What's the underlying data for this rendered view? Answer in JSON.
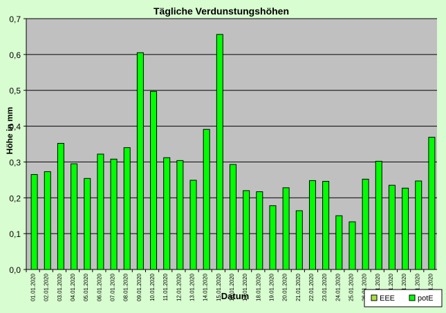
{
  "chart_data": {
    "type": "bar",
    "title": "Tägliche Verdunstungshöhen",
    "xlabel": "Datum",
    "ylabel": "Höhe in mm",
    "ylim": [
      0,
      0.7
    ],
    "yticks": [
      "0,0",
      "0,1",
      "0,2",
      "0,3",
      "0,4",
      "0,5",
      "0,6",
      "0,7"
    ],
    "grid": true,
    "legend_position": "bottom-right",
    "categories": [
      "01.01.2020",
      "02.01.2020",
      "03.01.2020",
      "04.01.2020",
      "05.01.2020",
      "06.01.2020",
      "07.01.2020",
      "08.01.2020",
      "09.01.2020",
      "10.01.2020",
      "11.01.2020",
      "12.01.2020",
      "13.01.2020",
      "14.01.2020",
      "15.01.2020",
      "16.01.2020",
      "17.01.2020",
      "18.01.2020",
      "19.01.2020",
      "20.01.2020",
      "21.01.2020",
      "22.01.2020",
      "23.01.2020",
      "24.01.2020",
      "25.01.2020",
      "26.01.2020",
      "27.01.2020",
      "28.01.2020",
      "29.01.2020",
      "30.01.2020",
      "31.01.2020"
    ],
    "series": [
      {
        "name": "EEE",
        "color": "#a8e040",
        "values": [
          0,
          0,
          0,
          0,
          0,
          0,
          0,
          0,
          0,
          0,
          0,
          0,
          0,
          0,
          0,
          0,
          0,
          0,
          0,
          0,
          0,
          0,
          0,
          0,
          0,
          0,
          0,
          0,
          0,
          0,
          0
        ]
      },
      {
        "name": "potE",
        "color": "#00ff00",
        "values": [
          0.265,
          0.273,
          0.352,
          0.295,
          0.254,
          0.322,
          0.308,
          0.34,
          0.605,
          0.497,
          0.312,
          0.304,
          0.249,
          0.391,
          0.656,
          0.293,
          0.22,
          0.217,
          0.178,
          0.228,
          0.164,
          0.248,
          0.246,
          0.15,
          0.133,
          0.252,
          0.302,
          0.235,
          0.227,
          0.247,
          0.369
        ]
      }
    ]
  }
}
